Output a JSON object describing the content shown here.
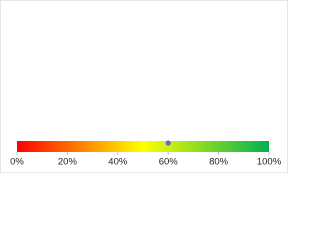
{
  "chart_data": {
    "type": "gauge",
    "values": [
      60
    ],
    "color": "#5b6bd0",
    "gradient": [
      "#ff0000",
      "#ffff00",
      "#00b050"
    ],
    "xlim": [
      0,
      100
    ],
    "xticks": [
      {
        "value": 0,
        "label": "0%"
      },
      {
        "value": 20,
        "label": "20%"
      },
      {
        "value": 40,
        "label": "40%"
      },
      {
        "value": 60,
        "label": "60%"
      },
      {
        "value": 80,
        "label": "80%"
      },
      {
        "value": 100,
        "label": "100%"
      }
    ]
  }
}
